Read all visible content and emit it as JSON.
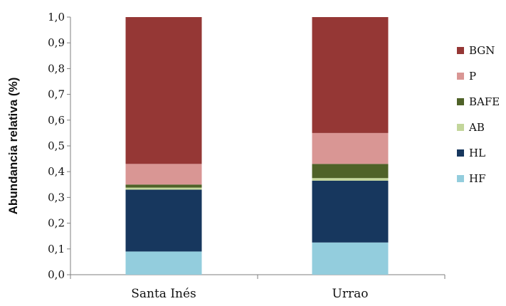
{
  "chart_data": {
    "type": "bar",
    "stacked": true,
    "title": "",
    "xlabel": "",
    "ylabel": "Abundancia relativa (%)",
    "ylim": [
      0,
      1
    ],
    "yticks": [
      "0,0",
      "0,1",
      "0,2",
      "0,3",
      "0,4",
      "0,5",
      "0,6",
      "0,7",
      "0,8",
      "0,9",
      "1,0"
    ],
    "categories": [
      "Santa Inés",
      "Urrao"
    ],
    "grid": false,
    "legend": "right",
    "series": [
      {
        "name": "HF",
        "color": "#93CDDD",
        "values": [
          0.09,
          0.125
        ]
      },
      {
        "name": "HL",
        "color": "#17375E",
        "values": [
          0.24,
          0.24
        ]
      },
      {
        "name": "AB",
        "color": "#C3D69B",
        "values": [
          0.008,
          0.01
        ]
      },
      {
        "name": "BAFE",
        "color": "#4F6228",
        "values": [
          0.012,
          0.055
        ]
      },
      {
        "name": "P",
        "color": "#D99694",
        "values": [
          0.08,
          0.12
        ]
      },
      {
        "name": "BGN",
        "color": "#953735",
        "values": [
          0.57,
          0.45
        ]
      }
    ]
  }
}
